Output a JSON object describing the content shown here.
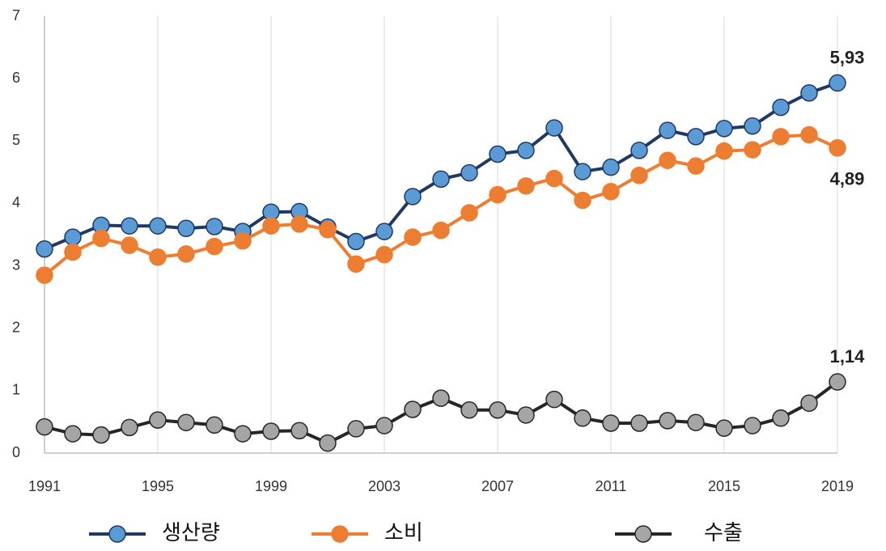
{
  "chart_data": {
    "type": "line",
    "x": [
      1991,
      1992,
      1993,
      1994,
      1995,
      1996,
      1997,
      1998,
      1999,
      2000,
      2001,
      2002,
      2003,
      2004,
      2005,
      2006,
      2007,
      2008,
      2009,
      2010,
      2011,
      2012,
      2013,
      2014,
      2015,
      2016,
      2017,
      2018,
      2019
    ],
    "xlim": [
      1991,
      2019
    ],
    "xticks": [
      1991,
      1995,
      1999,
      2003,
      2007,
      2011,
      2015,
      2019
    ],
    "ylim": [
      0,
      7
    ],
    "yticks": [
      0,
      1,
      2,
      3,
      4,
      5,
      6,
      7
    ],
    "grid": "x",
    "legend": "bottom",
    "series": [
      {
        "name": "생산량",
        "color": "#5b9bd5",
        "line_color": "#1f3864",
        "values": [
          3.27,
          3.46,
          3.65,
          3.64,
          3.64,
          3.6,
          3.63,
          3.55,
          3.86,
          3.87,
          3.62,
          3.39,
          3.55,
          4.11,
          4.39,
          4.49,
          4.79,
          4.85,
          5.21,
          4.51,
          4.58,
          4.85,
          5.17,
          5.07,
          5.2,
          5.24,
          5.54,
          5.77,
          5.93
        ],
        "value_labels": [
          null,
          null,
          null,
          null,
          null,
          null,
          null,
          null,
          null,
          null,
          null,
          null,
          null,
          null,
          null,
          null,
          null,
          null,
          null,
          null,
          null,
          null,
          null,
          null,
          null,
          null,
          null,
          null,
          "5,93"
        ]
      },
      {
        "name": "소비",
        "color": "#ed7d31",
        "line_color": "#ed7d31",
        "values": [
          2.85,
          3.22,
          3.44,
          3.33,
          3.14,
          3.19,
          3.31,
          3.4,
          3.64,
          3.67,
          3.58,
          3.03,
          3.18,
          3.46,
          3.57,
          3.85,
          4.14,
          4.28,
          4.4,
          4.05,
          4.19,
          4.45,
          4.69,
          4.6,
          4.84,
          4.86,
          5.07,
          5.1,
          4.89
        ],
        "value_labels": [
          null,
          null,
          null,
          null,
          null,
          null,
          null,
          null,
          null,
          null,
          null,
          null,
          null,
          null,
          null,
          null,
          null,
          null,
          null,
          null,
          null,
          null,
          null,
          null,
          null,
          null,
          null,
          null,
          "4,89"
        ]
      },
      {
        "name": "수출",
        "color": "#a5a5a5",
        "line_color": "#262626",
        "values": [
          0.42,
          0.31,
          0.29,
          0.41,
          0.53,
          0.49,
          0.45,
          0.31,
          0.35,
          0.36,
          0.16,
          0.39,
          0.44,
          0.7,
          0.88,
          0.69,
          0.69,
          0.61,
          0.86,
          0.56,
          0.48,
          0.48,
          0.52,
          0.49,
          0.4,
          0.44,
          0.56,
          0.8,
          1.14
        ],
        "value_labels": [
          null,
          null,
          null,
          null,
          null,
          null,
          null,
          null,
          null,
          null,
          null,
          null,
          null,
          null,
          null,
          null,
          null,
          null,
          null,
          null,
          null,
          null,
          null,
          null,
          null,
          null,
          null,
          null,
          "1,14"
        ]
      }
    ]
  }
}
